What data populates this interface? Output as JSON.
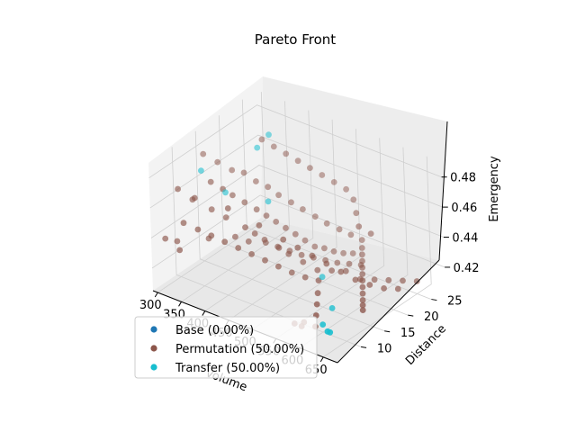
{
  "chart_data": {
    "type": "scatter",
    "projection": "3d",
    "title": "Pareto Front",
    "xlabel": "Volume",
    "ylabel": "Distance",
    "zlabel": "Emergency",
    "xlim": [
      290,
      680
    ],
    "ylim": [
      5,
      28
    ],
    "zlim": [
      0.405,
      0.49
    ],
    "xticks": [
      300,
      350,
      400,
      450,
      500,
      550,
      600,
      650
    ],
    "xtick_labels": [
      "300",
      "350",
      "400",
      "450",
      "500",
      "550",
      "600",
      "650"
    ],
    "yticks": [
      10,
      15,
      20,
      25
    ],
    "ytick_labels": [
      "10",
      "15",
      "20",
      "25"
    ],
    "zticks": [
      0.42,
      0.44,
      0.46,
      0.48
    ],
    "ztick_labels": [
      "0.42",
      "0.44",
      "0.46",
      "0.48"
    ],
    "grid": true,
    "legend_position": "lower-left",
    "series": [
      {
        "name": "Base (0.00%)",
        "color": "#1f77b4",
        "points": []
      },
      {
        "name": "Permutation (50.00%)",
        "color": "#8c564b",
        "points": [
          [
            320,
            8,
            0.47
          ],
          [
            330,
            10,
            0.46
          ],
          [
            345,
            9,
            0.465
          ],
          [
            360,
            11,
            0.455
          ],
          [
            380,
            12,
            0.45
          ],
          [
            395,
            11,
            0.46
          ],
          [
            410,
            13,
            0.445
          ],
          [
            420,
            14,
            0.44
          ],
          [
            430,
            15,
            0.435
          ],
          [
            440,
            13,
            0.45
          ],
          [
            450,
            16,
            0.43
          ],
          [
            460,
            17,
            0.425
          ],
          [
            470,
            15,
            0.44
          ],
          [
            480,
            18,
            0.42
          ],
          [
            490,
            16,
            0.435
          ],
          [
            500,
            19,
            0.415
          ],
          [
            510,
            17,
            0.43
          ],
          [
            520,
            20,
            0.415
          ],
          [
            530,
            18,
            0.425
          ],
          [
            540,
            21,
            0.415
          ],
          [
            550,
            19,
            0.42
          ],
          [
            560,
            22,
            0.41
          ],
          [
            570,
            20,
            0.415
          ],
          [
            580,
            23,
            0.41
          ],
          [
            590,
            21,
            0.412
          ],
          [
            600,
            24,
            0.41
          ],
          [
            610,
            22,
            0.41
          ],
          [
            620,
            25,
            0.41
          ],
          [
            630,
            23,
            0.41
          ],
          [
            640,
            26,
            0.41
          ],
          [
            350,
            12,
            0.47
          ],
          [
            365,
            13,
            0.465
          ],
          [
            375,
            14,
            0.46
          ],
          [
            390,
            15,
            0.455
          ],
          [
            405,
            16,
            0.45
          ],
          [
            415,
            17,
            0.445
          ],
          [
            425,
            18,
            0.44
          ],
          [
            435,
            19,
            0.435
          ],
          [
            445,
            20,
            0.43
          ],
          [
            455,
            21,
            0.425
          ],
          [
            465,
            22,
            0.42
          ],
          [
            475,
            23,
            0.418
          ],
          [
            485,
            24,
            0.415
          ],
          [
            495,
            25,
            0.413
          ],
          [
            505,
            26,
            0.412
          ],
          [
            315,
            14,
            0.48
          ],
          [
            335,
            15,
            0.475
          ],
          [
            355,
            16,
            0.47
          ],
          [
            370,
            17,
            0.468
          ],
          [
            385,
            18,
            0.462
          ],
          [
            400,
            19,
            0.458
          ],
          [
            412,
            20,
            0.452
          ],
          [
            428,
            21,
            0.447
          ],
          [
            442,
            22,
            0.442
          ],
          [
            458,
            23,
            0.437
          ],
          [
            472,
            24,
            0.432
          ],
          [
            488,
            25,
            0.428
          ],
          [
            502,
            26,
            0.424
          ],
          [
            515,
            27,
            0.42
          ],
          [
            525,
            26,
            0.418
          ],
          [
            535,
            25,
            0.417
          ],
          [
            545,
            24,
            0.416
          ],
          [
            555,
            23,
            0.415
          ],
          [
            565,
            22,
            0.414
          ],
          [
            575,
            21,
            0.413
          ],
          [
            585,
            20,
            0.412
          ],
          [
            595,
            19,
            0.411
          ],
          [
            605,
            18,
            0.41
          ],
          [
            615,
            17,
            0.41
          ],
          [
            625,
            16,
            0.41
          ],
          [
            340,
            7,
            0.452
          ],
          [
            360,
            8,
            0.448
          ],
          [
            378,
            9,
            0.444
          ],
          [
            396,
            10,
            0.44
          ],
          [
            414,
            11,
            0.436
          ],
          [
            432,
            12,
            0.432
          ],
          [
            450,
            13,
            0.428
          ],
          [
            468,
            14,
            0.424
          ],
          [
            486,
            15,
            0.42
          ],
          [
            504,
            16,
            0.417
          ],
          [
            522,
            17,
            0.415
          ],
          [
            540,
            15,
            0.413
          ],
          [
            558,
            13,
            0.412
          ],
          [
            576,
            11,
            0.411
          ],
          [
            594,
            9,
            0.41
          ],
          [
            560,
            8,
            0.41
          ],
          [
            570,
            9,
            0.41
          ],
          [
            575,
            8,
            0.41
          ],
          [
            380,
            20,
            0.485
          ],
          [
            395,
            21,
            0.48
          ],
          [
            410,
            22,
            0.475
          ],
          [
            425,
            23,
            0.47
          ],
          [
            440,
            24,
            0.465
          ],
          [
            455,
            25,
            0.46
          ],
          [
            470,
            26,
            0.455
          ],
          [
            485,
            27,
            0.45
          ],
          [
            500,
            27,
            0.445
          ],
          [
            515,
            26,
            0.44
          ],
          [
            530,
            25,
            0.435
          ],
          [
            545,
            26,
            0.43
          ],
          [
            310,
            6,
            0.44
          ],
          [
            325,
            7,
            0.438
          ],
          [
            340,
            6,
            0.436
          ],
          [
            362,
            10,
            0.438
          ],
          [
            388,
            13,
            0.436
          ],
          [
            406,
            14,
            0.433
          ],
          [
            422,
            16,
            0.43
          ],
          [
            437,
            17,
            0.427
          ],
          [
            452,
            18,
            0.424
          ],
          [
            467,
            19,
            0.421
          ],
          [
            482,
            20,
            0.419
          ],
          [
            497,
            21,
            0.417
          ],
          [
            512,
            22,
            0.415
          ],
          [
            527,
            23,
            0.414
          ],
          [
            542,
            24,
            0.413
          ]
        ]
      },
      {
        "name": "Transfer (50.00%)",
        "color": "#17becf",
        "points": [
          [
            330,
            12,
            0.475
          ],
          [
            360,
            14,
            0.46
          ],
          [
            390,
            18,
            0.485
          ],
          [
            395,
            20,
            0.49
          ],
          [
            420,
            17,
            0.455
          ],
          [
            580,
            14,
            0.41
          ],
          [
            600,
            10,
            0.41
          ],
          [
            620,
            9,
            0.41
          ],
          [
            625,
            9,
            0.41
          ],
          [
            520,
            18,
            0.415
          ]
        ]
      }
    ]
  }
}
